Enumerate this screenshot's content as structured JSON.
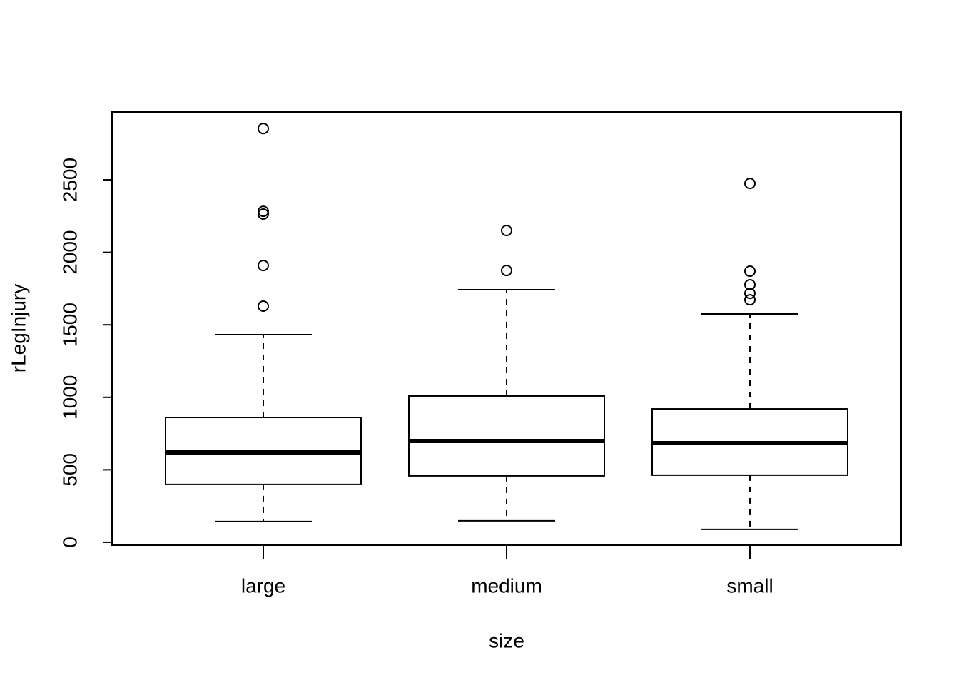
{
  "chart_data": {
    "type": "boxplot",
    "xlabel": "size",
    "ylabel": "rLegInjury",
    "categories": [
      "large",
      "medium",
      "small"
    ],
    "boxes": [
      {
        "min": 143,
        "q1": 399,
        "median": 620,
        "q3": 861,
        "max": 1432,
        "outliers": [
          2854,
          2283,
          2264,
          1909,
          1629
        ]
      },
      {
        "min": 148,
        "q1": 458,
        "median": 699,
        "q3": 1009,
        "max": 1742,
        "outliers": [
          2151,
          1875
        ]
      },
      {
        "min": 89,
        "q1": 463,
        "median": 684,
        "q3": 920,
        "max": 1575,
        "outliers": [
          2475,
          1870,
          1777,
          1717,
          1673
        ]
      }
    ],
    "ylim": [
      -20,
      2968
    ],
    "yticks": [
      0,
      500,
      1000,
      1500,
      2000,
      2500
    ]
  }
}
